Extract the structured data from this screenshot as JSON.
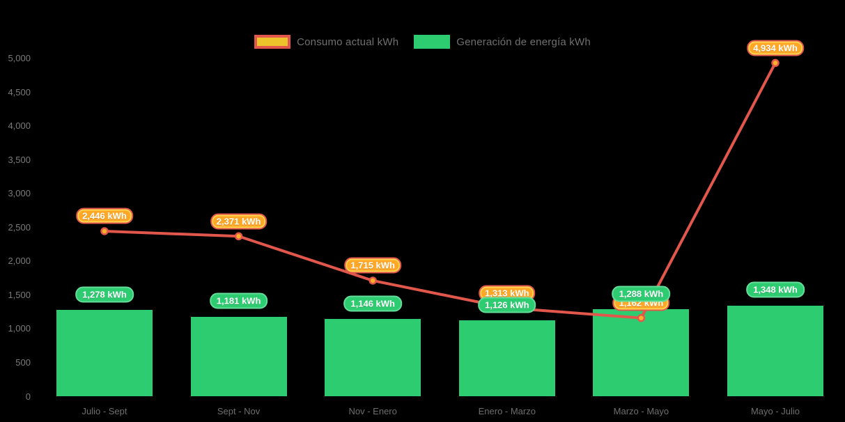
{
  "legend": {
    "position": "top-center"
  },
  "y_axis": {
    "tick_labels": [
      "0",
      "500",
      "1,000",
      "1,500",
      "2,000",
      "2,500",
      "3,000",
      "3,500",
      "4,000",
      "4,500",
      "5,000"
    ],
    "tick_values": [
      0,
      500,
      1000,
      1500,
      2000,
      2500,
      3000,
      3500,
      4000,
      4500,
      5000
    ]
  },
  "x_axis": {
    "labels": [
      "Julio - Sept",
      "Sept - Nov",
      "Nov - Enero",
      "Enero - Marzo",
      "Marzo - Mayo",
      "Mayo - Julio"
    ]
  },
  "chart_data": {
    "type": "bar",
    "subtype": "combo-bar-line",
    "categories": [
      "Julio - Sept",
      "Sept - Nov",
      "Nov - Enero",
      "Enero - Marzo",
      "Marzo - Mayo",
      "Mayo - Julio"
    ],
    "series": [
      {
        "name": "Consumo actual kWh",
        "type": "line",
        "color": "#E2574C",
        "marker_fill": "#FFB12B",
        "label_bg": "#FFA726",
        "values": [
          2446,
          2371,
          1715,
          1313,
          1162,
          4934
        ],
        "point_labels": [
          "2,446 kWh",
          "2,371 kWh",
          "1,715 kWh",
          "1,313 kWh",
          "1,162 kWh",
          "4,934 kWh"
        ]
      },
      {
        "name": "Generación de energía kWh",
        "type": "bar",
        "color": "#2ECC71",
        "values": [
          1278,
          1181,
          1146,
          1126,
          1288,
          1348
        ],
        "point_labels": [
          "1,278 kWh",
          "1,181 kWh",
          "1,146 kWh",
          "1,126 kWh",
          "1,288 kWh",
          "1,348 kWh"
        ]
      }
    ],
    "ylim": [
      0,
      5000
    ],
    "y_tick_step": 500,
    "grid": false,
    "legend_position": "top-center",
    "background": "#000000"
  },
  "colors": {
    "bar_green": "#2ECC71",
    "line_red": "#E2574C",
    "marker_orange": "#FFB12B",
    "consumo_label_bg": "#FFA726",
    "legend_swatch_fill": "#EDC32B",
    "axis_text": "#7A7A7A"
  }
}
